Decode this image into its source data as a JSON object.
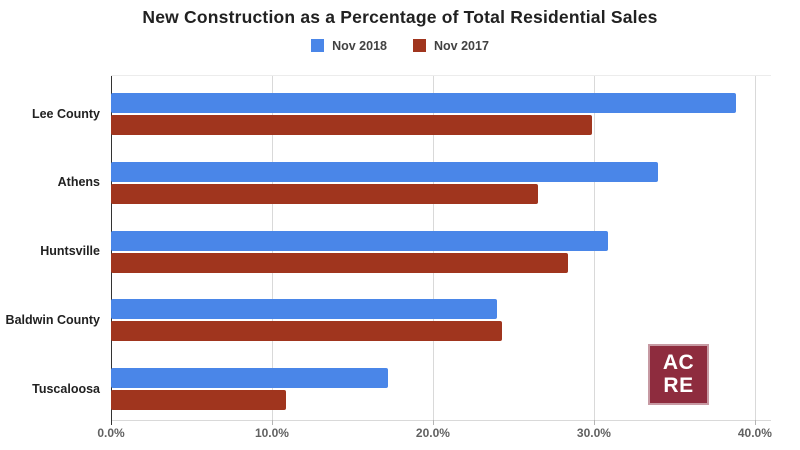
{
  "chart_data": {
    "type": "bar",
    "orientation": "horizontal",
    "title": "New Construction as a Percentage of Total Residential Sales",
    "categories": [
      "Lee County",
      "Athens",
      "Huntsville",
      "Baldwin County",
      "Tuscaloosa"
    ],
    "series": [
      {
        "name": "Nov 2018",
        "color": "#4a86e8",
        "values": [
          38.8,
          34.0,
          30.9,
          24.0,
          17.2
        ]
      },
      {
        "name": "Nov 2017",
        "color": "#a0351e",
        "values": [
          29.9,
          26.5,
          28.4,
          24.3,
          10.9
        ]
      }
    ],
    "xlabel": "",
    "ylabel": "",
    "x_axis": {
      "min": 0,
      "max": 40,
      "max_render": 41,
      "unit": "percent",
      "ticks": [
        {
          "value": 0,
          "label": "0.0%"
        },
        {
          "value": 10,
          "label": "10.0%"
        },
        {
          "value": 20,
          "label": "20.0%"
        },
        {
          "value": 30,
          "label": "30.0%"
        },
        {
          "value": 40,
          "label": "40.0%"
        }
      ]
    },
    "legend_position": "top",
    "grid": true
  },
  "logo": {
    "lines": [
      "AC",
      "RE"
    ],
    "background": "#8e2c3e",
    "border": "#c79aa3",
    "text_color": "#ffffff"
  }
}
